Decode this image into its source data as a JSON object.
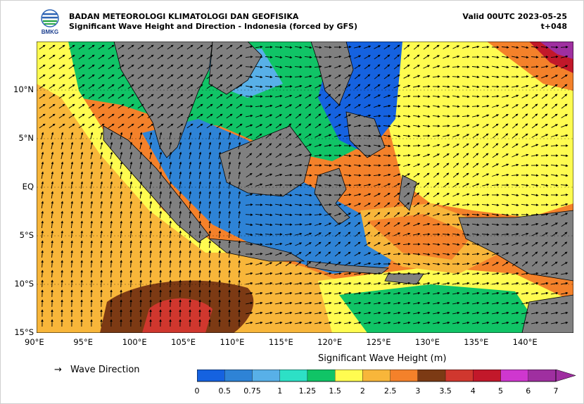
{
  "header": {
    "agency": "BADAN METEOROLOGI KLIMATOLOGI DAN GEOFISIKA",
    "title": "Significant Wave Height and Direction - Indonesia (forced by GFS)",
    "valid": "Valid 00UTC 2023-05-25",
    "lead": "t+048",
    "logo_text": "BMKG"
  },
  "map": {
    "extent": {
      "lon_min": 90,
      "lon_max": 145,
      "lat_min": -15,
      "lat_max": 15
    },
    "lon_ticks": [
      "90°E",
      "95°E",
      "100°E",
      "105°E",
      "110°E",
      "115°E",
      "120°E",
      "125°E",
      "130°E",
      "135°E",
      "140°E"
    ],
    "lat_ticks": [
      "10°N",
      "5°N",
      "EQ",
      "5°S",
      "10°S",
      "15°S"
    ],
    "land_color": "#808080",
    "lat_grid": true
  },
  "legend": {
    "arrow_symbol": "→",
    "label": "Wave Direction"
  },
  "colorbar": {
    "title": "Significant Wave Height (m)",
    "ticks": [
      "0",
      "0.5",
      "0.75",
      "1",
      "1.25",
      "1.5",
      "2",
      "2.5",
      "3",
      "3.5",
      "4",
      "5",
      "6",
      "7"
    ],
    "colors": [
      "#1562e0",
      "#2e83d6",
      "#58b0e8",
      "#2de0c6",
      "#10c466",
      "#fffc50",
      "#f8b63a",
      "#f4812a",
      "#7c3a14",
      "#d0372e",
      "#c2182a",
      "#cf37cf",
      "#9f2fa0"
    ],
    "extend": "max"
  }
}
